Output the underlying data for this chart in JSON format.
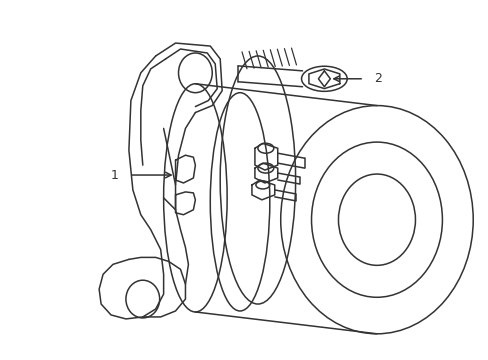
{
  "background_color": "#ffffff",
  "line_color": "#333333",
  "line_width": 1.1,
  "label_1": "1",
  "label_2": "2",
  "fig_width": 4.89,
  "fig_height": 3.6,
  "dpi": 100
}
